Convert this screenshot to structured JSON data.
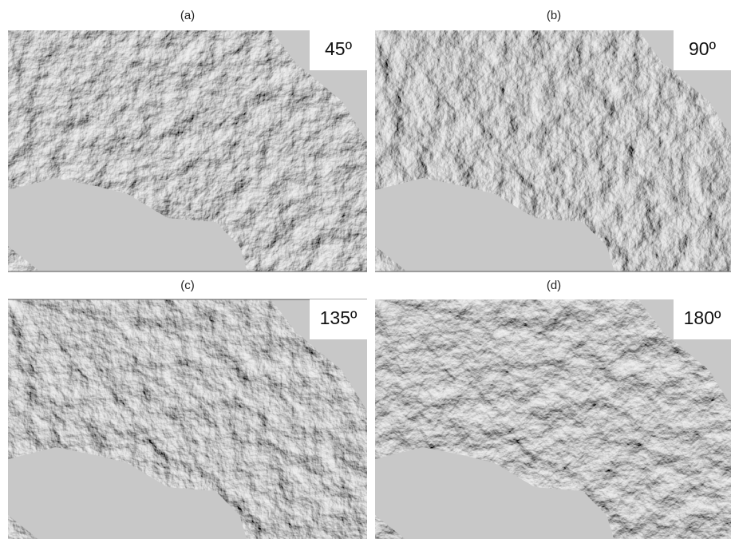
{
  "panels": [
    {
      "label": "(a)",
      "angle": "45º"
    },
    {
      "label": "(b)",
      "angle": "90º"
    },
    {
      "label": "(c)",
      "angle": "135º"
    },
    {
      "label": "(d)",
      "angle": "180º"
    }
  ]
}
